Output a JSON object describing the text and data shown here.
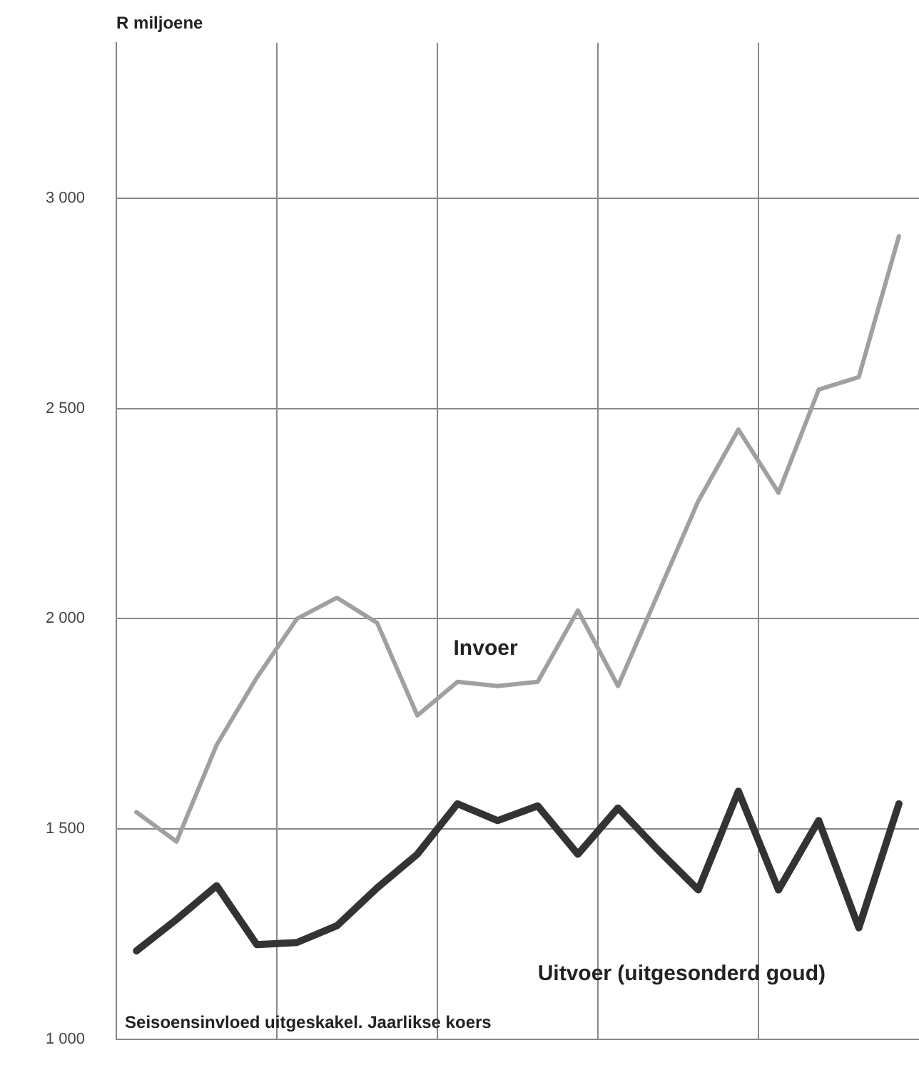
{
  "chart_data": {
    "type": "line",
    "ylabel": "R miljoene",
    "annotations": [
      "Seisoensinvloed uitgeskakel. Jaarlikse koers"
    ],
    "categories": [
      null,
      null,
      null,
      null,
      null,
      null,
      null,
      null,
      null,
      null,
      null,
      null,
      null,
      null,
      null,
      null,
      null,
      null,
      null,
      null
    ],
    "series": [
      {
        "name": "Invoer",
        "color": "#a0a0a0",
        "values": [
          1540,
          1470,
          1700,
          1860,
          2000,
          2050,
          1990,
          1770,
          1850,
          1840,
          1850,
          2020,
          1840,
          2060,
          2280,
          2450,
          2300,
          2545,
          2575,
          2910
        ]
      },
      {
        "name": "Uitvoer (uitgesonderd goud)",
        "color": "#333333",
        "values": [
          1210,
          1285,
          1365,
          1225,
          1230,
          1270,
          1360,
          1440,
          1560,
          1520,
          1555,
          1440,
          1550,
          1450,
          1355,
          1590,
          1355,
          1520,
          1265,
          1560
        ]
      }
    ],
    "ylim": [
      1000,
      3370
    ],
    "yticks": [
      {
        "value": 1000,
        "label": "1 000"
      },
      {
        "value": 1500,
        "label": "1 500"
      },
      {
        "value": 2000,
        "label": "2 000"
      },
      {
        "value": 2500,
        "label": "2 500"
      },
      {
        "value": 3000,
        "label": "3 000"
      }
    ],
    "grid": true,
    "legend": false,
    "marker": "none",
    "line_style": "solid"
  }
}
